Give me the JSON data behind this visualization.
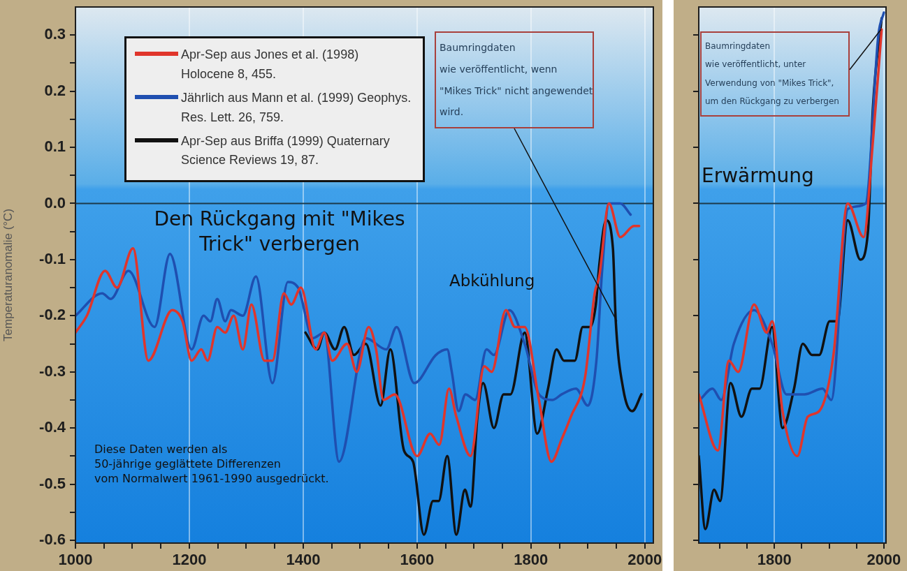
{
  "chart_data": [
    {
      "type": "line",
      "ylabel": "Temperaturanomalie (°C)",
      "xlim": [
        1000,
        2015
      ],
      "xticks": [
        1000,
        {
          "value": 1050,
          "label": null
        },
        {
          "value": 1100,
          "label": null
        },
        {
          "value": 1150,
          "label": null
        },
        1200,
        {
          "value": 1250,
          "label": null
        },
        {
          "value": 1300,
          "label": null
        },
        {
          "value": 1350,
          "label": null
        },
        1400,
        {
          "value": 1450,
          "label": null
        },
        {
          "value": 1500,
          "label": null
        },
        {
          "value": 1550,
          "label": null
        },
        1600,
        {
          "value": 1650,
          "label": null
        },
        {
          "value": 1700,
          "label": null
        },
        {
          "value": 1750,
          "label": null
        },
        1800,
        {
          "value": 1850,
          "label": null
        },
        {
          "value": 1900,
          "label": null
        },
        {
          "value": 1950,
          "label": null
        },
        2000
      ],
      "ylim": [
        -0.605,
        0.35
      ],
      "yticks": [
        -0.6,
        {
          "value": -0.55,
          "label": null
        },
        -0.5,
        {
          "value": -0.45,
          "label": null
        },
        -0.4,
        {
          "value": -0.35,
          "label": null
        },
        -0.3,
        {
          "value": -0.25,
          "label": null
        },
        -0.2,
        {
          "value": -0.15,
          "label": null
        },
        -0.1,
        {
          "value": -0.05,
          "label": null
        },
        {
          "value": 0,
          "label": "0.0"
        },
        {
          "value": 0.05,
          "label": null
        },
        0.1,
        {
          "value": 0.15,
          "label": null
        },
        0.2,
        {
          "value": 0.25,
          "label": null
        },
        0.3
      ],
      "grid": "x",
      "legend": "top left",
      "ref_lines": [
        {
          "axis": "y",
          "value": 0,
          "color": "#1c3a4a"
        }
      ],
      "annotations": [
        {
          "text": "Baumringdaten\nwie veröffentlicht, wenn\n\"Mikes Trick\" nicht angewendet\nwird.",
          "x": 1951,
          "y": -0.21
        },
        "Den Rückgang mit \"Mikes\nTrick\" verbergen",
        "Abkühlung",
        "Diese Daten werden als\n50-jährige geglättete Differenzen\nvom Normalwert 1961-1990 ausgedrückt."
      ],
      "series": [
        {
          "name": "Apr-Sep aus Jones et al. (1998) Holocene 8, 455.",
          "color": "#e0352b",
          "x": [
            1000,
            1020,
            1052,
            1073,
            1101,
            1128,
            1170,
            1188,
            1204,
            1221,
            1232,
            1249,
            1263,
            1278,
            1294,
            1309,
            1332,
            1346,
            1366,
            1379,
            1396,
            1422,
            1437,
            1451,
            1477,
            1494,
            1515,
            1528,
            1541,
            1561,
            1600,
            1623,
            1639,
            1656,
            1669,
            1694,
            1718,
            1731,
            1756,
            1772,
            1789,
            1814,
            1836,
            1854,
            1870,
            1895,
            1912,
            1920,
            1937,
            1957,
            1981,
            1990
          ],
          "values": [
            -0.23,
            -0.2,
            -0.12,
            -0.15,
            -0.08,
            -0.28,
            -0.19,
            -0.21,
            -0.28,
            -0.26,
            -0.28,
            -0.22,
            -0.23,
            -0.2,
            -0.26,
            -0.18,
            -0.28,
            -0.28,
            -0.16,
            -0.18,
            -0.15,
            -0.26,
            -0.23,
            -0.28,
            -0.25,
            -0.3,
            -0.22,
            -0.26,
            -0.35,
            -0.34,
            -0.45,
            -0.41,
            -0.43,
            -0.33,
            -0.38,
            -0.45,
            -0.29,
            -0.3,
            -0.19,
            -0.22,
            -0.22,
            -0.35,
            -0.46,
            -0.42,
            -0.38,
            -0.31,
            -0.16,
            -0.13,
            0,
            -0.06,
            -0.04,
            -0.04
          ]
        },
        {
          "name": "Jährlich aus Mann et al. (1999) Geophys. Res. Lett. 26, 759.",
          "color": "#1f4fb0",
          "x": [
            1000,
            1047,
            1062,
            1093,
            1139,
            1166,
            1204,
            1225,
            1237,
            1249,
            1263,
            1273,
            1294,
            1317,
            1346,
            1373,
            1391,
            1417,
            1437,
            1463,
            1510,
            1546,
            1564,
            1595,
            1633,
            1653,
            1661,
            1673,
            1685,
            1702,
            1722,
            1735,
            1762,
            1789,
            1814,
            1838,
            1854,
            1879,
            1900,
            1915,
            1925,
            1937,
            1957,
            1975
          ],
          "values": [
            -0.2,
            -0.16,
            -0.17,
            -0.12,
            -0.22,
            -0.09,
            -0.26,
            -0.2,
            -0.21,
            -0.17,
            -0.21,
            -0.19,
            -0.2,
            -0.13,
            -0.32,
            -0.14,
            -0.15,
            -0.24,
            -0.23,
            -0.46,
            -0.24,
            -0.26,
            -0.22,
            -0.32,
            -0.27,
            -0.26,
            -0.3,
            -0.37,
            -0.34,
            -0.35,
            -0.26,
            -0.27,
            -0.19,
            -0.25,
            -0.34,
            -0.35,
            -0.34,
            -0.33,
            -0.36,
            -0.28,
            -0.12,
            0,
            0,
            -0.02
          ]
        },
        {
          "name": "Apr-Sep aus Briffa (1999) Quaternary Science Reviews 19, 87.",
          "color": "#111111",
          "x": [
            1404,
            1425,
            1437,
            1456,
            1472,
            1489,
            1510,
            1536,
            1553,
            1577,
            1593,
            1612,
            1628,
            1638,
            1653,
            1669,
            1684,
            1694,
            1706,
            1716,
            1735,
            1752,
            1764,
            1789,
            1811,
            1830,
            1845,
            1858,
            1877,
            1891,
            1904,
            1914,
            1920,
            1932,
            1944,
            1949,
            1962,
            1978,
            1994
          ],
          "values": [
            -0.23,
            -0.26,
            -0.23,
            -0.26,
            -0.22,
            -0.27,
            -0.25,
            -0.36,
            -0.26,
            -0.44,
            -0.46,
            -0.59,
            -0.53,
            -0.53,
            -0.45,
            -0.59,
            -0.51,
            -0.54,
            -0.38,
            -0.32,
            -0.4,
            -0.34,
            -0.34,
            -0.23,
            -0.41,
            -0.33,
            -0.26,
            -0.28,
            -0.28,
            -0.22,
            -0.22,
            -0.18,
            -0.11,
            -0.03,
            -0.08,
            -0.21,
            -0.33,
            -0.37,
            -0.34
          ]
        }
      ]
    },
    {
      "type": "line",
      "xlim": [
        1662,
        2004
      ],
      "xticks": [
        {
          "value": 1700,
          "label": null
        },
        {
          "value": 1750,
          "label": null
        },
        1800,
        {
          "value": 1850,
          "label": null
        },
        {
          "value": 1900,
          "label": null
        },
        {
          "value": 1950,
          "label": null
        },
        2000
      ],
      "ylim": [
        -0.605,
        0.35
      ],
      "yticks": [
        -0.6,
        -0.5,
        -0.4,
        -0.3,
        -0.2,
        -0.1,
        0,
        0.1,
        0.2,
        0.3
      ],
      "tick_labels": "x",
      "grid": "x",
      "ref_lines": [
        {
          "axis": "y",
          "value": 0,
          "color": "#1c3a4a"
        }
      ],
      "annotations": [
        {
          "text": "Baumringdaten\nwie veröffentlicht, unter\nVerwendung von \"Mikes Trick\",\num den Rückgang zu verbergen",
          "x": 1995,
          "y": 0.31
        },
        "Erwärmung"
      ],
      "series": [
        {
          "color": "#e0352b",
          "x": [
            1662,
            1697,
            1717,
            1734,
            1763,
            1786,
            1796,
            1815,
            1842,
            1861,
            1882,
            1908,
            1934,
            1963,
            1980,
            1996
          ],
          "values": [
            -0.34,
            -0.44,
            -0.28,
            -0.3,
            -0.18,
            -0.23,
            -0.21,
            -0.37,
            -0.45,
            -0.38,
            -0.37,
            -0.27,
            0,
            -0.06,
            0.11,
            0.31
          ]
        },
        {
          "color": "#1f4fb0",
          "x": [
            1664,
            1687,
            1703,
            1726,
            1763,
            1796,
            1822,
            1855,
            1888,
            1904,
            1934,
            1967,
            1990,
            2000
          ],
          "values": [
            -0.35,
            -0.33,
            -0.35,
            -0.25,
            -0.19,
            -0.25,
            -0.34,
            -0.34,
            -0.33,
            -0.35,
            -0.01,
            0,
            0.3,
            0.34
          ]
        },
        {
          "color": "#111111",
          "x": [
            1662,
            1674,
            1690,
            1701,
            1720,
            1740,
            1759,
            1773,
            1796,
            1815,
            1836,
            1852,
            1869,
            1882,
            1901,
            1915,
            1934,
            1957,
            1971,
            1980,
            1996
          ],
          "values": [
            -0.45,
            -0.58,
            -0.51,
            -0.53,
            -0.32,
            -0.38,
            -0.33,
            -0.33,
            -0.22,
            -0.4,
            -0.33,
            -0.25,
            -0.27,
            -0.27,
            -0.21,
            -0.21,
            -0.03,
            -0.1,
            -0.05,
            0.17,
            0.33
          ]
        }
      ]
    }
  ]
}
